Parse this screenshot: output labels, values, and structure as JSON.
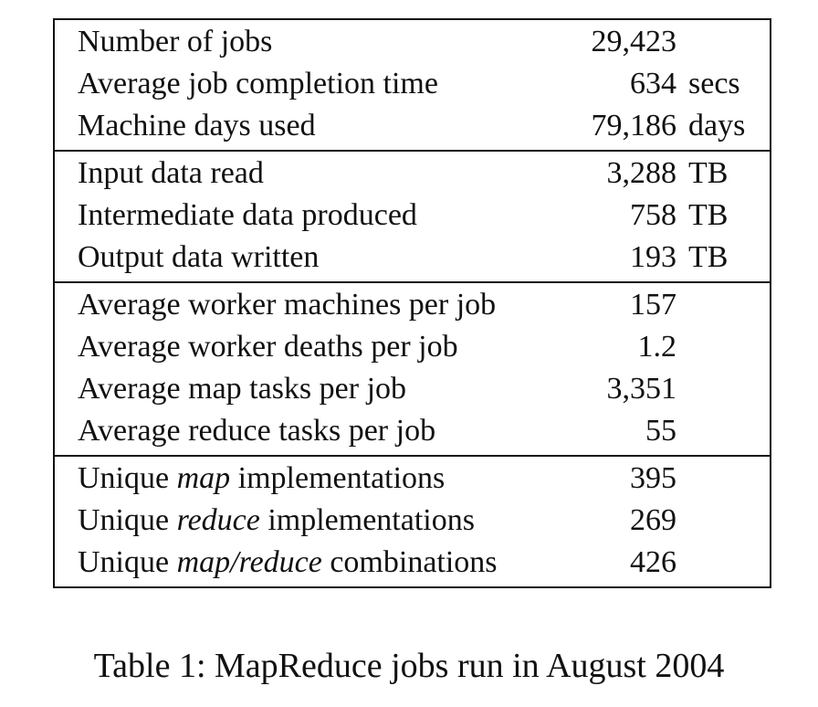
{
  "table": {
    "sections": [
      {
        "rows": [
          {
            "label": "Number of jobs",
            "value": "29,423",
            "unit": ""
          },
          {
            "label": "Average job completion time",
            "value": "634",
            "unit": "secs"
          },
          {
            "label": "Machine days used",
            "value": "79,186",
            "unit": "days"
          }
        ]
      },
      {
        "rows": [
          {
            "label": "Input data read",
            "value": "3,288",
            "unit": "TB"
          },
          {
            "label": "Intermediate data produced",
            "value": "758",
            "unit": "TB"
          },
          {
            "label": "Output data written",
            "value": "193",
            "unit": "TB"
          }
        ]
      },
      {
        "rows": [
          {
            "label": "Average worker machines per job",
            "value": "157",
            "unit": ""
          },
          {
            "label": "Average worker deaths per job",
            "value": "1.2",
            "unit": ""
          },
          {
            "label": "Average map tasks per job",
            "value": "3,351",
            "unit": ""
          },
          {
            "label": "Average reduce tasks per job",
            "value": "55",
            "unit": ""
          }
        ]
      },
      {
        "rows": [
          {
            "label_pre": "Unique ",
            "label_em": "map",
            "label_post": " implementations",
            "value": "395",
            "unit": ""
          },
          {
            "label_pre": "Unique ",
            "label_em": "reduce",
            "label_post": " implementations",
            "value": "269",
            "unit": ""
          },
          {
            "label_pre": "Unique ",
            "label_em": "map/reduce",
            "label_post": " combinations",
            "value": "426",
            "unit": ""
          }
        ]
      }
    ]
  },
  "caption": "Table 1: MapReduce jobs run in August 2004"
}
